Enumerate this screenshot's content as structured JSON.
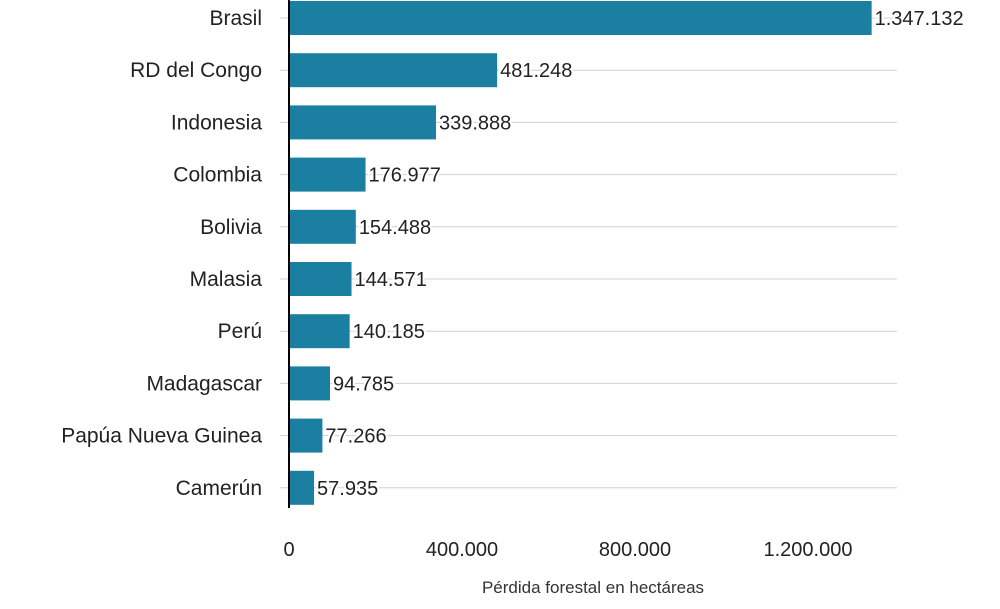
{
  "chart_data": {
    "type": "bar",
    "orientation": "horizontal",
    "title": "",
    "xlabel": "Pérdida forestal en hectáreas",
    "ylabel": "",
    "xlim": [
      0,
      1400000
    ],
    "xticks": [
      0,
      400000,
      800000,
      1200000
    ],
    "xtick_labels": [
      "0",
      "400.000",
      "800.000",
      "1.200.000"
    ],
    "categories": [
      "Brasil",
      "RD del Congo",
      "Indonesia",
      "Colombia",
      "Bolivia",
      "Malasia",
      "Perú",
      "Madagascar",
      "Papúa Nueva Guinea",
      "Camerún"
    ],
    "values": [
      1347132,
      481248,
      339888,
      176977,
      154488,
      144571,
      140185,
      94785,
      77266,
      57935
    ],
    "value_labels": [
      "1.347.132",
      "481.248",
      "339.888",
      "176.977",
      "154.488",
      "144.571",
      "140.185",
      "94.785",
      "77.266",
      "57.935"
    ],
    "bar_color": "#1a7fa0",
    "grid": true
  }
}
